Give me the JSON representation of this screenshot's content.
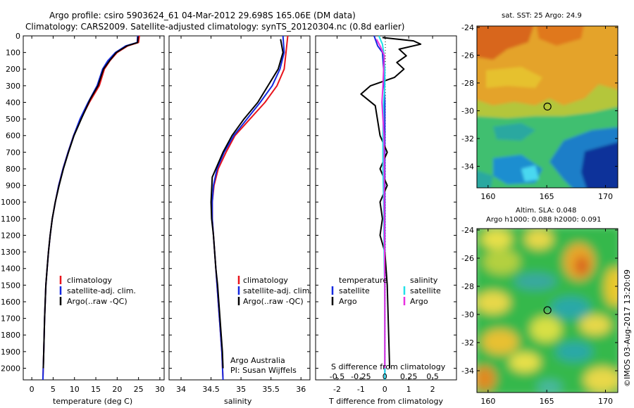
{
  "header": {
    "line1": "Argo profile: csiro 5903624_61 04-Mar-2012 29.698S 165.06E (DM data)",
    "line2": "Climatology: CARS2009. Satellite-adjusted climatology: synTS_20120304.nc (0.8d earlier)"
  },
  "colors": {
    "climatology": "#e8141c",
    "satellite": "#1428e0",
    "argo": "#000000",
    "salinity_satellite": "#22e0e8",
    "salinity_argo": "#e830e0"
  },
  "depth_ticks": [
    "0",
    "100",
    "200",
    "300",
    "400",
    "500",
    "600",
    "700",
    "800",
    "900",
    "1000",
    "1100",
    "1200",
    "1300",
    "1400",
    "1500",
    "1600",
    "1700",
    "1800",
    "1900",
    "2000"
  ],
  "legend": {
    "climatology": "climatology",
    "satellite_adj": "satellite-adj. clim.",
    "argo": "Argo(..raw -QC)",
    "temperature": "temperature",
    "salinity": "salinity",
    "satellite": "satellite",
    "argo_short": "Argo"
  },
  "credits": {
    "line1": "Argo Australia",
    "line2": "PI: Susan Wijffels"
  },
  "maps": {
    "sst_title": "sat. SST: 25 Argo: 24.9",
    "sla_title1": "Altim. SLA: 0.048",
    "sla_title2": "Argo h1000: 0.088 h2000: 0.091",
    "lat_ticks": [
      "-24",
      "-26",
      "-28",
      "-30",
      "-32",
      "-34"
    ],
    "lon_ticks": [
      "160",
      "165",
      "170"
    ],
    "argo_location": {
      "lon": 165.06,
      "lat": -29.698
    }
  },
  "side_label": "©IMOS 03-Aug-2017 13:20:09",
  "chart_data": [
    {
      "type": "line",
      "name": "temperature-profile",
      "xlabel": "temperature (deg C)",
      "xlim": [
        -2,
        31
      ],
      "ylim": [
        2070,
        0
      ],
      "x_ticks": [
        "0",
        "5",
        "10",
        "15",
        "20",
        "25",
        "30"
      ],
      "series": [
        {
          "name": "climatology",
          "points": [
            [
              25.2,
              0
            ],
            [
              25.0,
              40
            ],
            [
              22.5,
              60
            ],
            [
              20,
              100
            ],
            [
              18.3,
              150
            ],
            [
              17,
              200
            ],
            [
              15.8,
              300
            ],
            [
              13.5,
              400
            ],
            [
              11.5,
              500
            ],
            [
              9.8,
              600
            ],
            [
              8.5,
              700
            ],
            [
              7.3,
              800
            ],
            [
              6.3,
              900
            ],
            [
              5.5,
              1000
            ],
            [
              4.8,
              1100
            ],
            [
              4.3,
              1200
            ],
            [
              3.9,
              1300
            ],
            [
              3.6,
              1400
            ],
            [
              3.3,
              1500
            ],
            [
              3.0,
              1700
            ],
            [
              2.8,
              1900
            ],
            [
              2.6,
              2070
            ]
          ]
        },
        {
          "name": "satellite-adj. clim.",
          "points": [
            [
              24.8,
              0
            ],
            [
              24.7,
              40
            ],
            [
              22,
              60
            ],
            [
              19.6,
              100
            ],
            [
              17.8,
              150
            ],
            [
              16.6,
              200
            ],
            [
              15.3,
              300
            ],
            [
              13.2,
              400
            ],
            [
              11.3,
              500
            ],
            [
              9.8,
              600
            ],
            [
              8.5,
              700
            ],
            [
              7.3,
              800
            ],
            [
              6.3,
              900
            ],
            [
              5.5,
              1000
            ],
            [
              4.8,
              1100
            ],
            [
              4.3,
              1200
            ],
            [
              3.9,
              1300
            ],
            [
              3.6,
              1400
            ],
            [
              3.3,
              1500
            ],
            [
              3.0,
              1700
            ],
            [
              2.8,
              1900
            ],
            [
              2.6,
              2070
            ]
          ]
        },
        {
          "name": "Argo(..raw -QC)",
          "points": [
            [
              24.9,
              5
            ],
            [
              24.8,
              40
            ],
            [
              22.3,
              60
            ],
            [
              19.8,
              100
            ],
            [
              18.2,
              150
            ],
            [
              16.8,
              200
            ],
            [
              15.5,
              300
            ],
            [
              13.7,
              380
            ],
            [
              11.6,
              500
            ],
            [
              9.9,
              600
            ],
            [
              8.6,
              700
            ],
            [
              7.4,
              800
            ],
            [
              6.4,
              900
            ],
            [
              5.5,
              1000
            ],
            [
              4.8,
              1100
            ],
            [
              4.3,
              1200
            ],
            [
              3.9,
              1300
            ],
            [
              3.6,
              1400
            ],
            [
              3.3,
              1500
            ],
            [
              3.0,
              1700
            ],
            [
              2.8,
              1900
            ],
            [
              2.7,
              2000
            ]
          ]
        }
      ]
    },
    {
      "type": "line",
      "name": "salinity-profile",
      "xlabel": "salinity",
      "xlim": [
        33.8,
        36.15
      ],
      "ylim": [
        2070,
        0
      ],
      "x_ticks": [
        "34",
        "34.5",
        "35",
        "35.5",
        "36"
      ],
      "series": [
        {
          "name": "climatology",
          "points": [
            [
              35.78,
              0
            ],
            [
              35.75,
              100
            ],
            [
              35.72,
              200
            ],
            [
              35.6,
              300
            ],
            [
              35.4,
              400
            ],
            [
              35.15,
              500
            ],
            [
              34.9,
              600
            ],
            [
              34.75,
              700
            ],
            [
              34.62,
              800
            ],
            [
              34.55,
              900
            ],
            [
              34.52,
              1000
            ],
            [
              34.52,
              1100
            ],
            [
              34.54,
              1200
            ],
            [
              34.56,
              1300
            ],
            [
              34.58,
              1400
            ],
            [
              34.6,
              1500
            ],
            [
              34.62,
              1600
            ],
            [
              34.64,
              1700
            ],
            [
              34.66,
              1800
            ],
            [
              34.68,
              1900
            ],
            [
              34.7,
              2070
            ]
          ]
        },
        {
          "name": "satellite-adj. clim.",
          "points": [
            [
              35.7,
              0
            ],
            [
              35.72,
              100
            ],
            [
              35.65,
              200
            ],
            [
              35.52,
              300
            ],
            [
              35.32,
              400
            ],
            [
              35.1,
              500
            ],
            [
              34.88,
              600
            ],
            [
              34.72,
              700
            ],
            [
              34.6,
              800
            ],
            [
              34.54,
              900
            ],
            [
              34.52,
              1000
            ],
            [
              34.52,
              1100
            ],
            [
              34.54,
              1200
            ],
            [
              34.56,
              1300
            ],
            [
              34.58,
              1400
            ],
            [
              34.6,
              1500
            ],
            [
              34.62,
              1600
            ],
            [
              34.64,
              1700
            ],
            [
              34.66,
              1800
            ],
            [
              34.68,
              1900
            ],
            [
              34.7,
              2070
            ]
          ]
        },
        {
          "name": "Argo(..raw -QC)",
          "points": [
            [
              35.66,
              20
            ],
            [
              35.7,
              100
            ],
            [
              35.62,
              200
            ],
            [
              35.45,
              300
            ],
            [
              35.28,
              400
            ],
            [
              35.05,
              500
            ],
            [
              34.85,
              600
            ],
            [
              34.7,
              700
            ],
            [
              34.58,
              800
            ],
            [
              34.52,
              850
            ],
            [
              34.5,
              1000
            ],
            [
              34.51,
              1100
            ],
            [
              34.54,
              1200
            ],
            [
              34.56,
              1300
            ],
            [
              34.58,
              1400
            ],
            [
              34.61,
              1500
            ],
            [
              34.63,
              1600
            ],
            [
              34.65,
              1700
            ],
            [
              34.67,
              1800
            ],
            [
              34.69,
              1900
            ],
            [
              34.7,
              2000
            ]
          ]
        }
      ]
    },
    {
      "type": "line",
      "name": "difference-profile",
      "xlabel": "T difference from climatology",
      "xlabel_top": "S difference from climatology",
      "xlim": [
        -2.9,
        3.0
      ],
      "ylim": [
        2070,
        0
      ],
      "x_ticks": [
        "-2",
        "-1",
        "0",
        "1",
        "2"
      ],
      "top_ticks": [
        "-0.5",
        "-0.25",
        "0",
        "0.25",
        "0.5"
      ],
      "series": [
        {
          "name": "temperature satellite",
          "points": [
            [
              -0.45,
              0
            ],
            [
              -0.3,
              60
            ],
            [
              -0.1,
              100
            ],
            [
              -0.05,
              200
            ],
            [
              0,
              400
            ],
            [
              0,
              600
            ],
            [
              0,
              800
            ],
            [
              0,
              1000
            ],
            [
              0,
              2070
            ]
          ]
        },
        {
          "name": "temperature Argo",
          "points": [
            [
              -0.1,
              10
            ],
            [
              1.2,
              30
            ],
            [
              1.5,
              50
            ],
            [
              0.6,
              80
            ],
            [
              0.9,
              120
            ],
            [
              0.5,
              160
            ],
            [
              0.8,
              200
            ],
            [
              0.4,
              250
            ],
            [
              -0.6,
              300
            ],
            [
              -1.0,
              350
            ],
            [
              -0.4,
              420
            ],
            [
              -0.2,
              600
            ],
            [
              0.1,
              700
            ],
            [
              -0.2,
              800
            ],
            [
              0.1,
              900
            ],
            [
              -0.2,
              1000
            ],
            [
              -0.1,
              1100
            ],
            [
              -0.2,
              1200
            ],
            [
              0,
              1300
            ],
            [
              0.1,
              1500
            ],
            [
              0.2,
              2000
            ]
          ]
        },
        {
          "name": "salinity satellite",
          "points": [
            [
              -0.25,
              0
            ],
            [
              -0.1,
              50
            ],
            [
              -0.05,
              100
            ],
            [
              0,
              200
            ],
            [
              0,
              300
            ],
            [
              -0.05,
              400
            ],
            [
              -0.08,
              600
            ],
            [
              -0.08,
              800
            ],
            [
              -0.05,
              1000
            ],
            [
              -0.03,
              1300
            ],
            [
              0,
              1600
            ],
            [
              0,
              2070
            ]
          ]
        },
        {
          "name": "salinity Argo",
          "points": [
            [
              -0.35,
              20
            ],
            [
              -0.2,
              60
            ],
            [
              -0.02,
              120
            ],
            [
              -0.05,
              200
            ],
            [
              -0.08,
              300
            ],
            [
              -0.12,
              400
            ],
            [
              -0.08,
              500
            ],
            [
              -0.03,
              600
            ],
            [
              -0.02,
              800
            ],
            [
              -0.02,
              1000
            ],
            [
              -0.01,
              1300
            ],
            [
              0,
              1600
            ],
            [
              0,
              2000
            ]
          ]
        }
      ]
    }
  ]
}
